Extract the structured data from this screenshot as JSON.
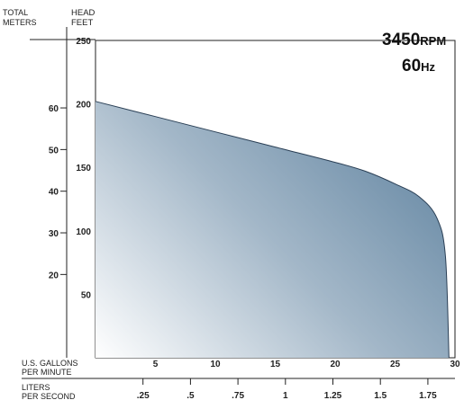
{
  "chart_data": {
    "type": "area",
    "title_rpm_value": "3450",
    "title_rpm_unit": "RPM",
    "title_hz_value": "60",
    "title_hz_unit": "Hz",
    "y_label_meters_line1": "TOTAL",
    "y_label_meters_line2": "METERS",
    "y_label_feet_line1": "HEAD",
    "y_label_feet_line2": "FEET",
    "x_label_gpm_line1": "U.S. GALLONS",
    "x_label_gpm_line2": "PER MINUTE",
    "x_label_lps_line1": "LITERS",
    "x_label_lps_line2": "PER SECOND",
    "xlim": [
      0,
      30
    ],
    "ylim": [
      0,
      250
    ],
    "x_ticks_gpm": [
      "5",
      "10",
      "15",
      "20",
      "25",
      "30"
    ],
    "x_ticks_gpm_values": [
      5,
      10,
      15,
      20,
      25,
      30
    ],
    "x_ticks_lps": [
      ".25",
      ".5",
      ".75",
      "1",
      "1.25",
      "1.5",
      "1.75"
    ],
    "x_ticks_lps_values": [
      0.25,
      0.5,
      0.75,
      1,
      1.25,
      1.5,
      1.75
    ],
    "y_ticks_feet": [
      "250",
      "200",
      "150",
      "100",
      "50"
    ],
    "y_ticks_feet_values": [
      250,
      200,
      150,
      100,
      50
    ],
    "y_ticks_meters": [
      "60",
      "50",
      "40",
      "30",
      "20"
    ],
    "y_ticks_meters_values": [
      60,
      50,
      40,
      30,
      20
    ],
    "series": [
      {
        "x": [
          0,
          5,
          10,
          15,
          20,
          22.5,
          25,
          27,
          28.5,
          29.2,
          29.5
        ],
        "y": [
          202,
          190,
          178,
          166,
          154,
          147,
          137,
          127,
          110,
          80,
          0
        ]
      }
    ],
    "colors": {
      "fill_dark": "#6a8ba6",
      "fill_light": "#ffffff",
      "line": "#2a3f55"
    }
  }
}
